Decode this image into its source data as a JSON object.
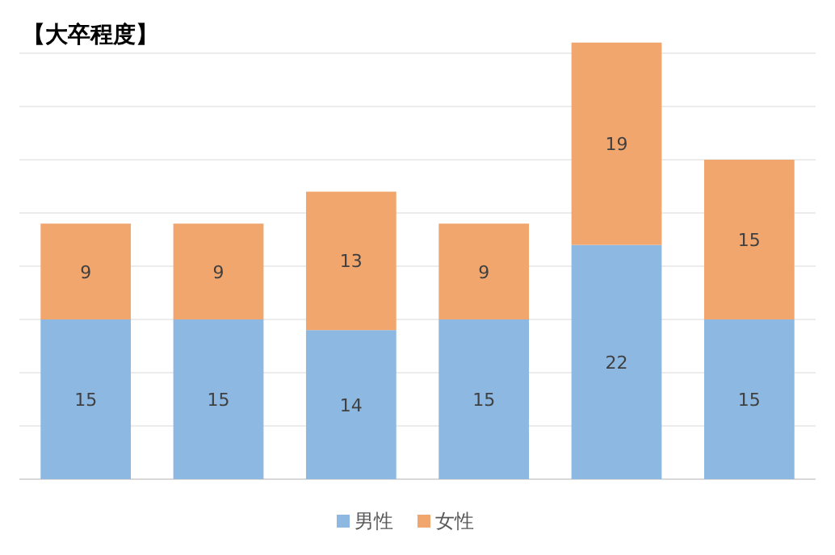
{
  "chart_data": {
    "type": "bar",
    "title": "【大卒程度】",
    "categories": [
      null,
      null,
      null,
      null,
      null,
      null
    ],
    "stacked": true,
    "series": [
      {
        "name": "男性",
        "color": "#8cb8e2",
        "values": [
          15,
          15,
          14,
          15,
          22,
          15
        ]
      },
      {
        "name": "女性",
        "color": "#f1a66e",
        "values": [
          9,
          9,
          13,
          9,
          19,
          15
        ]
      }
    ],
    "yticks": [
      {
        "value": 0,
        "label": null
      },
      {
        "value": 5,
        "label": null
      },
      {
        "value": 10,
        "label": null
      },
      {
        "value": 15,
        "label": null
      },
      {
        "value": 20,
        "label": null
      },
      {
        "value": 25,
        "label": null
      },
      {
        "value": 30,
        "label": null
      },
      {
        "value": 35,
        "label": null
      },
      {
        "value": 40,
        "label": null
      }
    ],
    "grid": "y",
    "data_labels": true,
    "legend": "bottom"
  }
}
